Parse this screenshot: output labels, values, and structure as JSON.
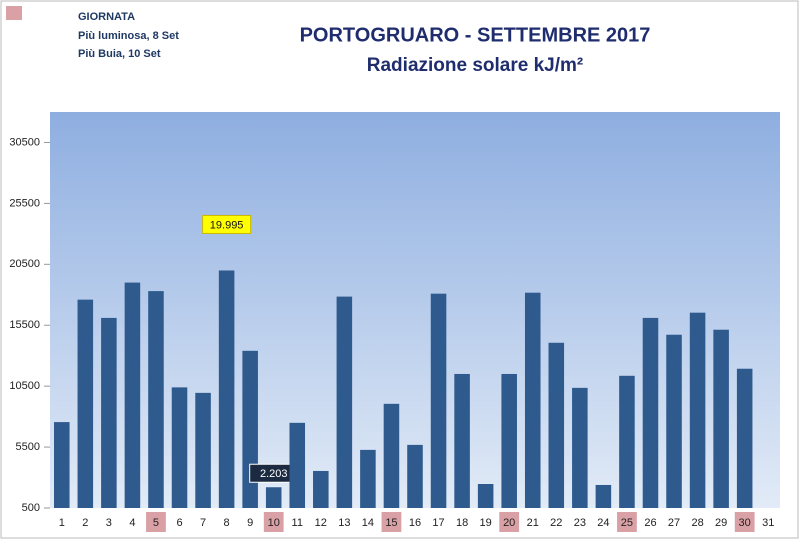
{
  "chart_data": {
    "type": "bar",
    "title": "PORTOGRUARO - SETTEMBRE 2017",
    "subtitle": "Radiazione solare kJ/m²",
    "notes": [
      "GIORNATA",
      "Più luminosa, 8 Set",
      "Più Buia, 10 Set"
    ],
    "categories": [
      "1",
      "2",
      "3",
      "4",
      "5",
      "6",
      "7",
      "8",
      "9",
      "10",
      "11",
      "12",
      "13",
      "14",
      "15",
      "16",
      "17",
      "18",
      "19",
      "20",
      "21",
      "22",
      "23",
      "24",
      "25",
      "26",
      "27",
      "28",
      "29",
      "30",
      "31"
    ],
    "values": [
      7550,
      17600,
      16100,
      19000,
      18300,
      10400,
      9950,
      19995,
      13400,
      2203,
      7490,
      3540,
      17850,
      5270,
      9050,
      5680,
      18090,
      11500,
      2470,
      11500,
      18170,
      14060,
      10360,
      2390,
      11350,
      16100,
      14720,
      16530,
      15130,
      11930,
      null
    ],
    "value_labels": [
      null,
      null,
      null,
      null,
      null,
      null,
      null,
      "19.995",
      null,
      "2.203",
      null,
      null,
      null,
      null,
      null,
      null,
      null,
      null,
      null,
      null,
      null,
      null,
      null,
      null,
      null,
      null,
      null,
      null,
      null,
      null,
      null
    ],
    "highlighted": [
      false,
      false,
      false,
      false,
      true,
      false,
      false,
      false,
      false,
      true,
      false,
      false,
      false,
      false,
      true,
      false,
      false,
      false,
      false,
      true,
      false,
      false,
      false,
      false,
      true,
      false,
      false,
      false,
      false,
      true,
      false
    ],
    "color": "#2e5a8e",
    "highlight_color": "#d9a0a6",
    "ylim": [
      500,
      33000
    ],
    "yticks": [
      500,
      5500,
      10500,
      15500,
      20500,
      25500,
      30500
    ],
    "grid": false
  }
}
